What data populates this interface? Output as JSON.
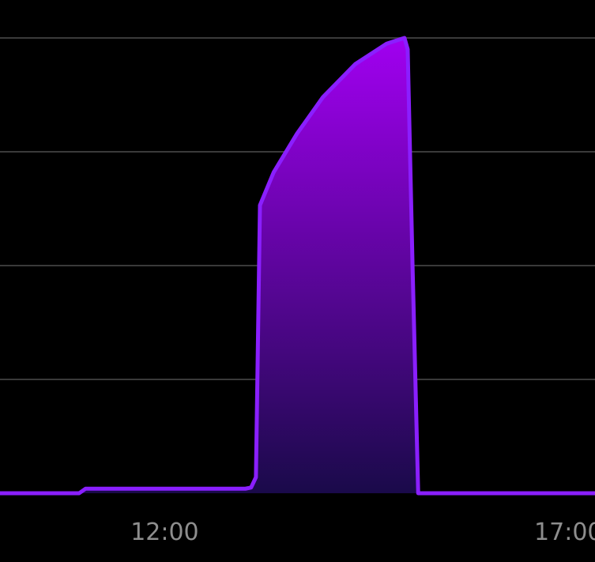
{
  "chart_data": {
    "type": "area",
    "title": "",
    "xlabel": "",
    "ylabel": "",
    "x_unit": "hours",
    "x_ticks": [
      {
        "x": 12.0,
        "label": "12:00"
      },
      {
        "x": 17.0,
        "label": "17:00"
      }
    ],
    "xlim": [
      9.96,
      17.33
    ],
    "ylim": [
      0,
      4
    ],
    "grid": {
      "horizontal": true,
      "lines": [
        1,
        2,
        3,
        4
      ]
    },
    "legend": "none",
    "colors": {
      "line": "#8a1fff",
      "fill_top": "#a100f0",
      "fill_bottom": "#1a0a4a",
      "grid": "#3a3a3a",
      "tick_label": "#8e8e8e",
      "background": "#000000"
    },
    "series": [
      {
        "points": [
          [
            9.96,
            0.0
          ],
          [
            10.94,
            0.0
          ],
          [
            11.02,
            0.04
          ],
          [
            13.0,
            0.04
          ],
          [
            13.07,
            0.05
          ],
          [
            13.13,
            0.14
          ],
          [
            13.18,
            2.53
          ],
          [
            13.35,
            2.82
          ],
          [
            13.64,
            3.16
          ],
          [
            13.96,
            3.48
          ],
          [
            14.36,
            3.77
          ],
          [
            14.75,
            3.95
          ],
          [
            14.97,
            4.0
          ],
          [
            15.01,
            3.9
          ],
          [
            15.07,
            2.0
          ],
          [
            15.14,
            0.0
          ],
          [
            17.33,
            0.0
          ]
        ]
      }
    ]
  }
}
